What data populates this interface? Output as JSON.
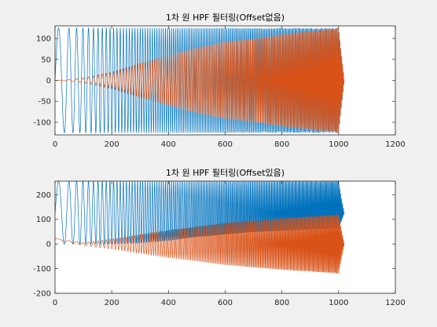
{
  "chart_data": [
    {
      "type": "line",
      "title": "1차 원 HPF 필터링(Offset없음)",
      "xlabel": "",
      "ylabel": "",
      "xlim": [
        0,
        1200
      ],
      "ylim": [
        -130,
        130
      ],
      "xticks": [
        "0",
        "200",
        "400",
        "600",
        "800",
        "1000",
        "1200"
      ],
      "yticks": [
        "-100",
        "-50",
        "0",
        "50",
        "100"
      ],
      "ytick_values": [
        -100,
        -50,
        0,
        50,
        100
      ],
      "grid": false,
      "legend": "none",
      "series": [
        {
          "color": "#0072BD",
          "description": "chirp input, constant amplitude ~125 centered at 0, 0-1020",
          "x": [
            0,
            100,
            200,
            300,
            400,
            500,
            600,
            700,
            800,
            900,
            1000,
            1020
          ],
          "envelope_upper": [
            125,
            125,
            125,
            125,
            125,
            125,
            125,
            125,
            125,
            125,
            125,
            0
          ],
          "envelope_lower": [
            -125,
            -125,
            -125,
            -125,
            -125,
            -125,
            -125,
            -125,
            -125,
            -125,
            -125,
            0
          ]
        },
        {
          "color": "#D95319",
          "description": "HPF output, amplitude growing with frequency, 0-1020",
          "x": [
            0,
            50,
            100,
            200,
            300,
            400,
            500,
            600,
            650,
            700,
            800,
            900,
            1000,
            1020
          ],
          "envelope_upper": [
            0,
            2,
            6,
            20,
            40,
            60,
            78,
            92,
            96,
            100,
            110,
            118,
            125,
            0
          ],
          "envelope_lower": [
            0,
            -2,
            -6,
            -20,
            -40,
            -60,
            -78,
            -92,
            -96,
            -100,
            -110,
            -118,
            -125,
            0
          ]
        }
      ]
    },
    {
      "type": "line",
      "title": "1차 원 HPF 필터링(Offset있음)",
      "xlabel": "",
      "ylabel": "",
      "xlim": [
        0,
        1200
      ],
      "ylim": [
        -200,
        255
      ],
      "xticks": [
        "0",
        "200",
        "400",
        "600",
        "800",
        "1000",
        "1200"
      ],
      "yticks": [
        "-200",
        "-100",
        "0",
        "100",
        "200"
      ],
      "ytick_values": [
        -200,
        -100,
        0,
        100,
        200
      ],
      "grid": false,
      "legend": "none",
      "series": [
        {
          "color": "#0072BD",
          "description": "chirp input with offset ~125, constant amplitude ~125, 0-1020",
          "x": [
            0,
            100,
            200,
            300,
            400,
            500,
            600,
            700,
            800,
            900,
            1000,
            1020
          ],
          "center": [
            125,
            125,
            125,
            125,
            125,
            125,
            125,
            125,
            125,
            125,
            125,
            125
          ],
          "envelope_upper": [
            255,
            255,
            255,
            255,
            255,
            255,
            255,
            255,
            255,
            255,
            255,
            125
          ],
          "envelope_lower": [
            0,
            0,
            0,
            5,
            15,
            30,
            40,
            50,
            55,
            60,
            65,
            125
          ]
        },
        {
          "color": "#D95319",
          "description": "HPF output with offset removed, amplitude growing, 0-1020",
          "x": [
            0,
            100,
            200,
            300,
            400,
            500,
            600,
            700,
            800,
            900,
            1000,
            1020
          ],
          "center": [
            20,
            0,
            0,
            0,
            0,
            0,
            0,
            0,
            0,
            0,
            0,
            0
          ],
          "envelope_upper": [
            22,
            6,
            20,
            38,
            55,
            70,
            85,
            95,
            105,
            112,
            120,
            0
          ],
          "envelope_lower": [
            18,
            -6,
            -20,
            -38,
            -55,
            -70,
            -85,
            -95,
            -105,
            -112,
            -120,
            0
          ]
        }
      ]
    }
  ]
}
